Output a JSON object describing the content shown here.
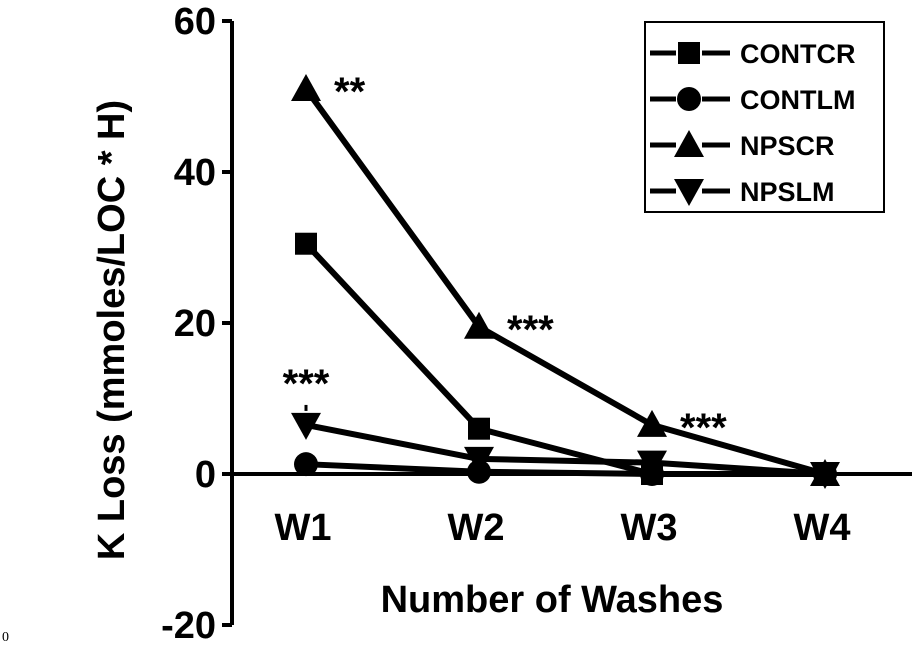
{
  "chart_data": {
    "type": "line",
    "title": "",
    "xlabel": "Number of Washes",
    "ylabel": "K Loss (mmoles/LOC * H)",
    "categories": [
      "W1",
      "W2",
      "W3",
      "W4"
    ],
    "ylim": [
      -20,
      60
    ],
    "yticks": [
      "-20",
      "0",
      "20",
      "40",
      "60"
    ],
    "ytick_values": [
      -20,
      0,
      20,
      40,
      60
    ],
    "grid": false,
    "legend_position": "top-right",
    "series": [
      {
        "name": "CONTCR",
        "marker": "square",
        "values": [
          30.5,
          6.0,
          0.0,
          0.0
        ]
      },
      {
        "name": "CONTLM",
        "marker": "circle",
        "values": [
          1.3,
          0.3,
          0.0,
          0.0
        ]
      },
      {
        "name": "NPSCR",
        "marker": "triangle-up",
        "values": [
          51.0,
          19.5,
          6.5,
          0.0
        ]
      },
      {
        "name": "NPSLM",
        "marker": "triangle-down",
        "values": [
          6.5,
          2.0,
          1.5,
          0.0
        ]
      }
    ],
    "annotations": [
      {
        "text": "**",
        "series": "NPSCR",
        "category": "W1"
      },
      {
        "text": "***",
        "series": "NPSCR",
        "category": "W2"
      },
      {
        "text": "***",
        "series": "NPSCR",
        "category": "W3"
      },
      {
        "text": "***",
        "series": "NPSLM",
        "category": "W1"
      }
    ],
    "colors": {
      "line": "#000000",
      "background": "#ffffff"
    }
  },
  "page": {
    "corner_label": "0"
  }
}
